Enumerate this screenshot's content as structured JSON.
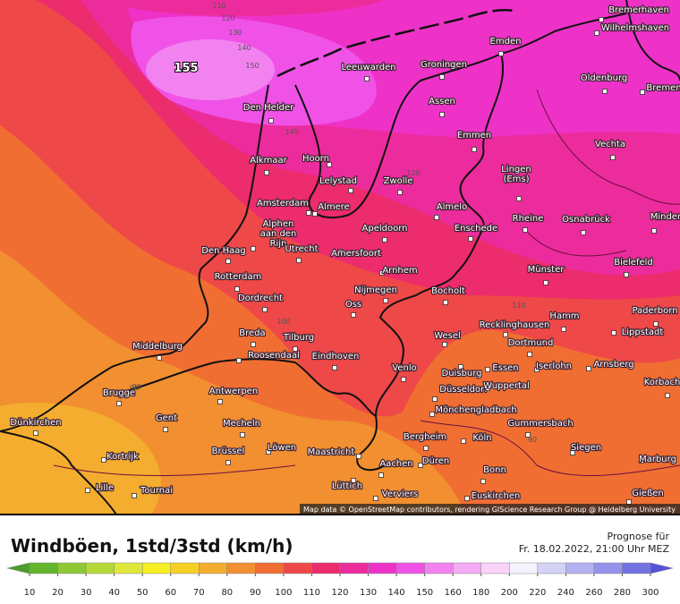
{
  "map": {
    "cities": [
      "Bremerhaven",
      "Wilhelmshaven",
      "Emden",
      "Leeuwarden",
      "Groningen",
      "Oldenburg",
      "Bremen",
      "Den Helder",
      "Assen",
      "Emmen",
      "Vechta",
      "Alkmaar",
      "Hoorn",
      "Lelystad",
      "Zwolle",
      "Lingen (Ems)",
      "Amsterdam",
      "Almere",
      "Almelo",
      "Alphen aan den Rijn",
      "Rheine",
      "Osnabrück",
      "Minden",
      "Apeldoorn",
      "Enschede",
      "Utrecht",
      "Den Haag",
      "Amersfoort",
      "Bielefeld",
      "Münster",
      "Arnhem",
      "Rotterdam",
      "Nijmegen",
      "Bocholt",
      "Dordrecht",
      "Oss",
      "Hamm",
      "Paderborn",
      "Recklinghausen",
      "Wesel",
      "Lippstadt",
      "Breda",
      "Tilburg",
      "Dortmund",
      "Middelburg",
      "Roosendaal",
      "Eindhoven",
      "Essen",
      "Iserlohn",
      "Arnsberg",
      "Venlo",
      "Duisburg",
      "Korbach",
      "Brugge",
      "Antwerpen",
      "Düsseldorf",
      "Wuppertal",
      "Gent",
      "Mönchengladbach",
      "Mecheln",
      "Gummersbach",
      "Dünkirchen",
      "Bergheim",
      "Köln",
      "Kortrijk",
      "Brüssel",
      "Löwen",
      "Maastricht",
      "Siegen",
      "Marburg",
      "Düren",
      "Aachen",
      "Bonn",
      "Lille",
      "Tournai",
      "Lüttich",
      "Verviers",
      "Euskirchen",
      "Gießen"
    ],
    "contour_labels": [
      110,
      120,
      130,
      140,
      150,
      155,
      140,
      120,
      100,
      90,
      110,
      90,
      90
    ],
    "attribution": "Map data © OpenStreetMap contributors, rendering GIScience Research Group @ Heidelberg University"
  },
  "footer": {
    "title": "Windböen, 1std/3std (km/h)",
    "forecast_label": "Prognose für",
    "forecast_time": "Fr. 18.02.2022, 21:00 Uhr MEZ"
  },
  "legend": {
    "ticks": [
      10,
      20,
      30,
      40,
      50,
      60,
      70,
      80,
      90,
      100,
      110,
      120,
      130,
      140,
      150,
      160,
      180,
      200,
      220,
      240,
      260,
      280,
      300
    ],
    "colors": [
      "#4c9e2a",
      "#62b52c",
      "#8ec834",
      "#b6d93a",
      "#dfe83a",
      "#f6ee22",
      "#f6cf22",
      "#f4ad2e",
      "#f28f30",
      "#f06e32",
      "#ee4848",
      "#ec2c6c",
      "#ec2c9c",
      "#ee32c8",
      "#f052e8",
      "#f282f0",
      "#f4aaf4",
      "#f8d2f8",
      "#f4f2fc",
      "#d4d2f4",
      "#b4b2f0",
      "#9492ea",
      "#7472e2",
      "#5452d8"
    ]
  }
}
